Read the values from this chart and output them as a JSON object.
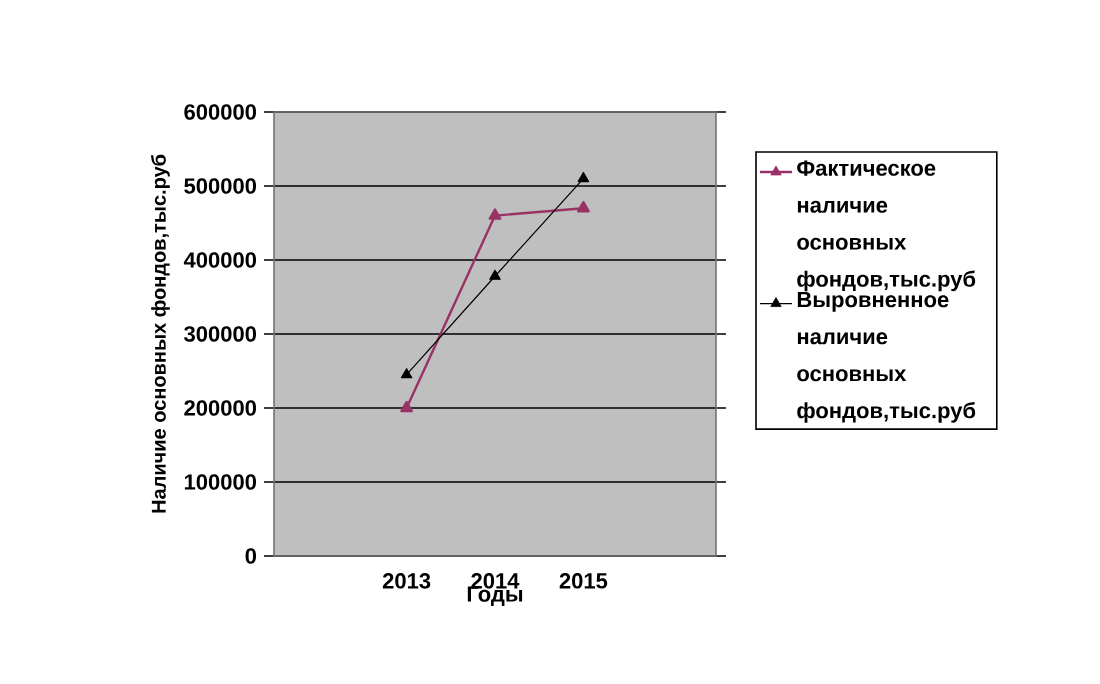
{
  "chart_data": {
    "type": "line",
    "xlabel": "Годы",
    "ylabel": "Наличие основных фондов,тыс.руб",
    "categories": [
      null,
      "2013",
      "2014",
      "2015",
      null
    ],
    "series": [
      {
        "name": "Фактическое наличие основных фондов,тыс.руб",
        "color": "#993366",
        "values": [
          null,
          200000,
          460000,
          470000,
          null
        ]
      },
      {
        "name": "Выровненное наличие основных фондов,тыс.руб",
        "color": "#000000",
        "values": [
          null,
          245000,
          378000,
          510000,
          null
        ]
      }
    ],
    "ylim": [
      0,
      600000
    ],
    "yticks": [
      0,
      100000,
      200000,
      300000,
      400000,
      500000,
      600000
    ],
    "grid": "y",
    "legend": "right",
    "marker": "triangle",
    "line_style": "solid"
  }
}
